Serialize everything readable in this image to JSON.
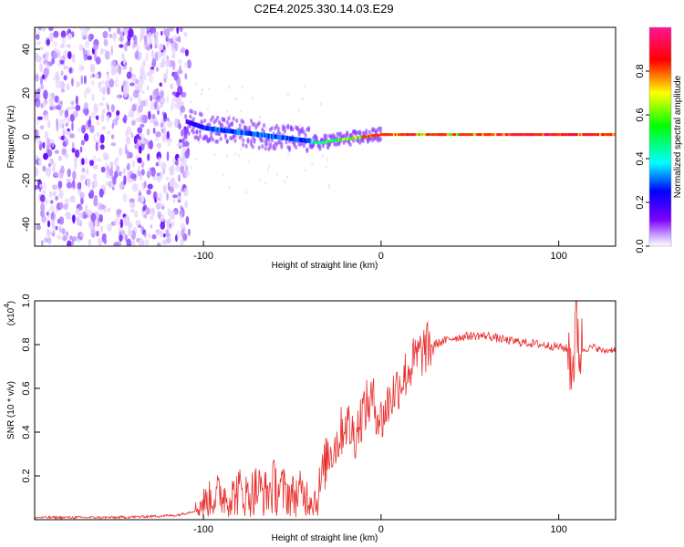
{
  "title": "C2E4.2025.330.14.03.E29",
  "chart_data": [
    {
      "type": "heatmap",
      "name": "spectrogram",
      "xlabel": "Height of straight line (km)",
      "ylabel": "Frequency (Hz)",
      "xlim": [
        -195,
        132
      ],
      "ylim": [
        -50,
        50
      ],
      "xticks": [
        -100,
        0,
        100
      ],
      "xtick_labels": [
        "-100",
        "0",
        "100"
      ],
      "yticks": [
        -40,
        -20,
        0,
        20,
        40
      ],
      "ytick_labels": [
        "-40",
        "-20",
        "0",
        "20",
        "40"
      ],
      "noise_region_x": [
        -195,
        -108
      ],
      "signal_track": {
        "x": [
          -110,
          -100,
          -90,
          -80,
          -70,
          -60,
          -50,
          -40,
          -35,
          -30,
          -20,
          -10,
          0,
          20,
          40,
          60,
          80,
          100,
          110,
          132
        ],
        "freq": [
          7,
          4,
          3,
          2,
          1,
          0,
          -1,
          -2,
          -3,
          -2,
          -1,
          0,
          1,
          1,
          1,
          1,
          1,
          1,
          1,
          1
        ],
        "amplitude": [
          0.2,
          0.3,
          0.35,
          0.35,
          0.35,
          0.35,
          0.3,
          0.4,
          0.55,
          0.55,
          0.65,
          0.75,
          0.85,
          0.75,
          0.7,
          0.85,
          0.95,
          0.8,
          0.85,
          0.85
        ]
      },
      "colorbar": {
        "label": "Normalized spectral amplitude",
        "range": [
          0,
          1
        ],
        "ticks": [
          0.0,
          0.2,
          0.4,
          0.6,
          0.8
        ],
        "tick_labels": [
          "0.0",
          "0.2",
          "0.4",
          "0.6",
          "0.8"
        ],
        "colors": [
          "#ffffff",
          "#7f00ff",
          "#0000ff",
          "#00ffff",
          "#00ff00",
          "#ffff00",
          "#ff0000",
          "#ff1493"
        ]
      }
    },
    {
      "type": "line",
      "name": "snr",
      "xlabel": "Height of straight line (km)",
      "ylabel": "SNR (10 * v/v)",
      "scale_label": "(x10",
      "scale_exponent": "4",
      "scale_close": ")",
      "xlim": [
        -195,
        132
      ],
      "ylim": [
        0,
        1.0
      ],
      "xticks": [
        -100,
        0,
        100
      ],
      "xtick_labels": [
        "-100",
        "0",
        "100"
      ],
      "yticks": [
        0.2,
        0.4,
        0.6,
        0.8,
        1.0
      ],
      "ytick_labels": [
        "0.2",
        "0.4",
        "0.6",
        "0.8",
        "1.0"
      ],
      "color": "#e8312f",
      "x": [
        -195,
        -170,
        -150,
        -130,
        -115,
        -105,
        -100,
        -95,
        -90,
        -85,
        -80,
        -75,
        -70,
        -65,
        -60,
        -55,
        -50,
        -45,
        -40,
        -36,
        -33,
        -30,
        -25,
        -20,
        -15,
        -10,
        -5,
        0,
        5,
        10,
        15,
        20,
        25,
        30,
        40,
        50,
        60,
        70,
        80,
        90,
        100,
        105,
        108,
        110,
        112,
        115,
        120,
        125,
        132
      ],
      "y": [
        0.01,
        0.01,
        0.01,
        0.015,
        0.02,
        0.04,
        0.08,
        0.1,
        0.12,
        0.1,
        0.13,
        0.11,
        0.14,
        0.12,
        0.15,
        0.13,
        0.11,
        0.12,
        0.1,
        0.09,
        0.2,
        0.3,
        0.35,
        0.45,
        0.38,
        0.5,
        0.55,
        0.45,
        0.55,
        0.62,
        0.68,
        0.74,
        0.78,
        0.8,
        0.83,
        0.84,
        0.84,
        0.82,
        0.81,
        0.8,
        0.79,
        0.78,
        0.7,
        0.92,
        0.77,
        0.78,
        0.79,
        0.77,
        0.78
      ]
    }
  ]
}
